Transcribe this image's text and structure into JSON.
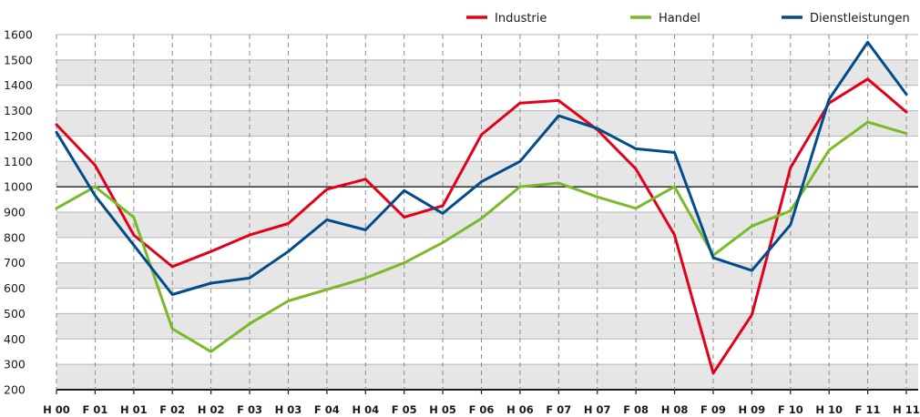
{
  "chart_data": {
    "type": "line",
    "categories": [
      "H 00",
      "F 01",
      "H 01",
      "F 02",
      "H 02",
      "F 03",
      "H 03",
      "F 04",
      "H 04",
      "F 05",
      "H 05",
      "F 06",
      "H 06",
      "F 07",
      "H 07",
      "F 08",
      "H 08",
      "F 09",
      "H 09",
      "F 10",
      "H 10",
      "F 11",
      "H 11"
    ],
    "series": [
      {
        "name": "Industrie",
        "color": "#e2001a",
        "values": [
          1245,
          1085,
          810,
          685,
          745,
          810,
          855,
          990,
          1030,
          880,
          925,
          1205,
          1330,
          1340,
          1225,
          1070,
          810,
          265,
          495,
          1075,
          1330,
          1425,
          1295
        ]
      },
      {
        "name": "Handel",
        "color": "#7ab929",
        "values": [
          915,
          1000,
          880,
          440,
          350,
          460,
          550,
          595,
          640,
          700,
          780,
          875,
          1000,
          1015,
          960,
          915,
          1000,
          730,
          845,
          905,
          1145,
          1255,
          1210
        ]
      },
      {
        "name": "Dienstleistungen",
        "color": "#004c8c",
        "values": [
          1215,
          965,
          770,
          575,
          620,
          640,
          745,
          870,
          830,
          985,
          895,
          1020,
          1100,
          1280,
          1230,
          1150,
          1135,
          720,
          670,
          850,
          1345,
          1570,
          1365
        ]
      }
    ],
    "ylim": [
      200,
      1600
    ],
    "yticks": [
      200,
      300,
      400,
      500,
      600,
      700,
      800,
      900,
      1000,
      1100,
      1200,
      1300,
      1400,
      1500,
      1600
    ],
    "reference_line": 1000,
    "grid": true,
    "legend_position": "top-right"
  }
}
